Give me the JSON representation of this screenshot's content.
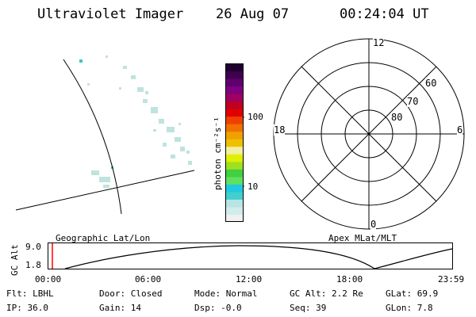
{
  "header": {
    "instrument": "Ultraviolet Imager",
    "date": "26 Aug 07",
    "time": "00:24:04 UT"
  },
  "colorbar": {
    "unit_label": "photon cm⁻²s⁻¹",
    "ticks": [
      {
        "value": 100,
        "label": "100"
      },
      {
        "value": 10,
        "label": "10"
      }
    ],
    "colors": [
      "#f0f0f0",
      "#d0ecec",
      "#b8e4e4",
      "#40d0d0",
      "#20c8e0",
      "#60e060",
      "#40d040",
      "#a0e020",
      "#e0f000",
      "#f0f0a0",
      "#f0c000",
      "#f0a000",
      "#f07000",
      "#f04000",
      "#e00000",
      "#c00020",
      "#a00060",
      "#800080",
      "#600070",
      "#400050",
      "#200030"
    ]
  },
  "polar": {
    "mlt_labels": {
      "top": "12",
      "left": "18",
      "right": "6",
      "bottom": "0"
    },
    "lat_labels": [
      "60",
      "70",
      "80"
    ]
  },
  "track": {
    "ylabel": "GC Alt",
    "y_ticks": [
      "9.0",
      "1.8"
    ],
    "left_title": "Geographic Lat/Lon",
    "right_title": "Apex MLat/MLT",
    "x_ticks": [
      "00:00",
      "06:00",
      "12:00",
      "18:00",
      "23:59"
    ],
    "marker_color": "#ff0000"
  },
  "status": {
    "row1": {
      "flt": "Flt: LBHL",
      "door": "Door: Closed",
      "mode": "Mode: Normal",
      "gcalt": "GC Alt: 2.2 Re",
      "glat": "GLat:  69.9"
    },
    "row2": {
      "ip": "IP: 36.0",
      "gain": "Gain: 14",
      "dsp": "Dsp:   -0.0",
      "seq": "Seq: 39",
      "glon": "GLon:   7.8"
    }
  }
}
